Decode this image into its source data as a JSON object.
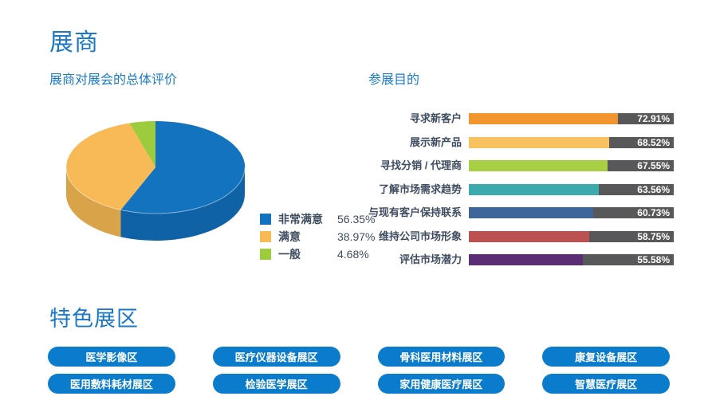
{
  "sections": {
    "exhibitors_title": "展商",
    "featured_zones_title": "特色展区"
  },
  "pie_section": {
    "title": "展商对展会的总体评价"
  },
  "bar_section": {
    "title": "参展目的"
  },
  "chart_data": [
    {
      "type": "pie",
      "title": "展商对展会的总体评价",
      "style": "3d",
      "legend_position": "right",
      "slices": [
        {
          "label": "非常满意",
          "value": 56.35,
          "value_label": "56.35%",
          "color": "#1373BE",
          "side_color": "#0F62A6"
        },
        {
          "label": "满意",
          "value": 38.97,
          "value_label": "38.97%",
          "color": "#F7BA57",
          "side_color": "#D8A349"
        },
        {
          "label": "一般",
          "value": 4.68,
          "value_label": "4.68%",
          "color": "#9CCB3D",
          "side_color": "#84B133"
        }
      ]
    },
    {
      "type": "bar",
      "title": "参展目的",
      "orientation": "horizontal",
      "xlim": [
        0,
        100
      ],
      "track_color": "#58585A",
      "rows": [
        {
          "label": "寻求新客户",
          "value": 72.91,
          "value_label": "72.91%",
          "color": "#F2952F"
        },
        {
          "label": "展示新产品",
          "value": 68.52,
          "value_label": "68.52%",
          "color": "#FAC160"
        },
        {
          "label": "寻找分销 / 代理商",
          "value": 67.55,
          "value_label": "67.55%",
          "color": "#A8CE44"
        },
        {
          "label": "了解市场需求趋势",
          "value": 63.56,
          "value_label": "63.56%",
          "color": "#3BAAAD"
        },
        {
          "label": "与现有客户保持联系",
          "value": 60.73,
          "value_label": "60.73%",
          "color": "#40659B"
        },
        {
          "label": "维持公司市场形象",
          "value": 58.75,
          "value_label": "58.75%",
          "color": "#BC5151"
        },
        {
          "label": "评估市场潜力",
          "value": 55.58,
          "value_label": "55.58%",
          "color": "#5B2D74"
        }
      ]
    }
  ],
  "featured_zones": {
    "title": "特色展区",
    "buttons": [
      "医学影像区",
      "医疗仪器设备展区",
      "骨科医用材料展区",
      "康复设备展区",
      "医用敷料耗材展区",
      "检验医学展区",
      "家用健康医疗展区",
      "智慧医疗展区"
    ]
  },
  "colors": {
    "heading_blue": "#1B78C6",
    "text_dark": "#3E4D5F",
    "button_blue": "#0B7CCB",
    "bar_track_gray": "#58585A"
  }
}
